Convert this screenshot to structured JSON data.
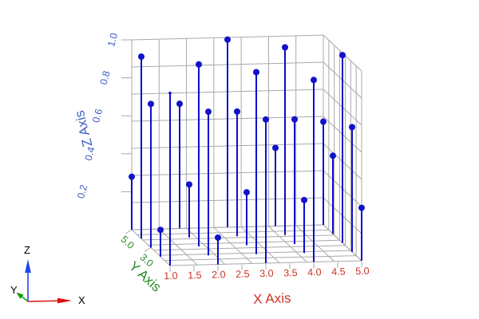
{
  "colors": {
    "background": "#ffffff",
    "grid": "#a8a8a8",
    "stem": "#0d0dcc",
    "marker": "#1212c8",
    "x_axis_text": "#cc3322",
    "y_axis_text": "#268726",
    "z_axis_text": "#3f5fc4",
    "tripod_x": "#dd1111",
    "tripod_y": "#119911",
    "tripod_z": "#2244ee",
    "tripod_text": "#000000"
  },
  "chart_data": {
    "type": "scatter",
    "subtype": "3d-stem-plot",
    "title": "",
    "legend": "none",
    "grid": "on",
    "wall_grid_divisions": 7,
    "x": {
      "label": "X Axis",
      "range": [
        1.0,
        5.0
      ],
      "tick_labels": [
        "1.0",
        "1.5",
        "2.0",
        "2.5",
        "3.0",
        "3.5",
        "4.0",
        "4.5",
        "5.0"
      ]
    },
    "y": {
      "label": "Y Axis",
      "range": [
        1.0,
        5.0
      ],
      "tick_labels": [
        "5.0",
        "3.0"
      ],
      "tick_values": [
        5.0,
        3.0
      ]
    },
    "z": {
      "label": "Z Axis",
      "range": [
        0.0,
        1.0
      ],
      "tick_labels": [
        "0.2",
        "0.4",
        "0.6",
        "0.8",
        "1.0"
      ]
    },
    "points": [
      {
        "x": 1,
        "y": 1,
        "z": 0.909,
        "marker": "small"
      },
      {
        "x": 2,
        "y": 1,
        "z": 0.141
      },
      {
        "x": 3,
        "y": 1,
        "z": 0.757
      },
      {
        "x": 4,
        "y": 1,
        "z": 0.959
      },
      {
        "x": 5,
        "y": 1,
        "z": 0.279
      },
      {
        "x": 1,
        "y": 2,
        "z": 0.141
      },
      {
        "x": 2,
        "y": 2,
        "z": 0.757
      },
      {
        "x": 3,
        "y": 2,
        "z": 0.959
      },
      {
        "x": 4,
        "y": 2,
        "z": 0.279
      },
      {
        "x": 5,
        "y": 2,
        "z": 0.657
      },
      {
        "x": 1,
        "y": 3,
        "z": 0.757
      },
      {
        "x": 2,
        "y": 3,
        "z": 0.959
      },
      {
        "x": 3,
        "y": 3,
        "z": 0.279
      },
      {
        "x": 4,
        "y": 3,
        "z": 0.657
      },
      {
        "x": 5,
        "y": 3,
        "z": 0.989
      },
      {
        "x": 1,
        "y": 4,
        "z": 0.959
      },
      {
        "x": 2,
        "y": 4,
        "z": 0.279
      },
      {
        "x": 3,
        "y": 4,
        "z": 0.657
      },
      {
        "x": 4,
        "y": 4,
        "z": 0.989
      },
      {
        "x": 5,
        "y": 4,
        "z": 0.412
      },
      {
        "x": 1,
        "y": 5,
        "z": 0.279
      },
      {
        "x": 2,
        "y": 5,
        "z": 0.657
      },
      {
        "x": 3,
        "y": 5,
        "z": 0.989
      },
      {
        "x": 4,
        "y": 5,
        "z": 0.412
      },
      {
        "x": 5,
        "y": 5,
        "z": 0.544
      }
    ]
  },
  "tripod": {
    "x_label": "X",
    "y_label": "Y",
    "z_label": "Z"
  }
}
